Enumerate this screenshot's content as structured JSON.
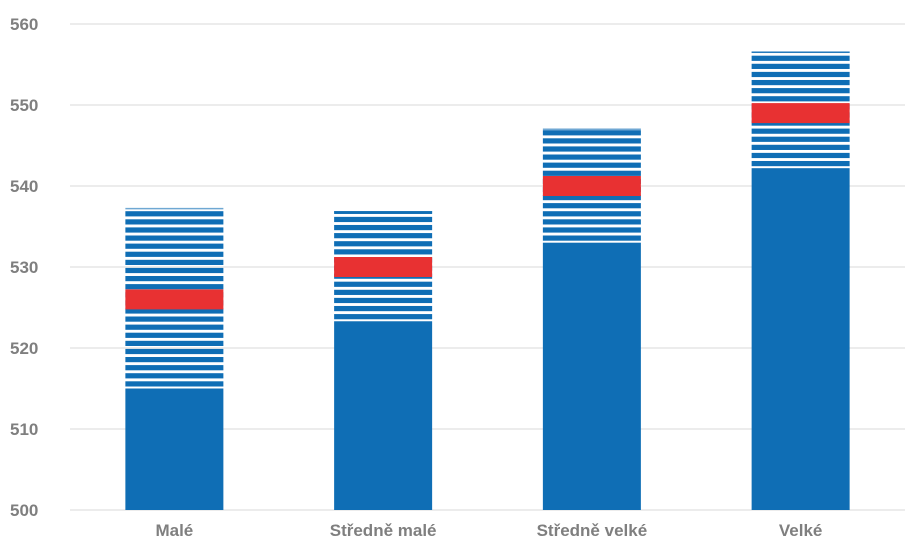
{
  "chart_data": {
    "type": "bar",
    "categories": [
      "Malé",
      "Středně malé",
      "Středně velké",
      "Velké"
    ],
    "series": [
      {
        "values": [
          515,
          523.3,
          533,
          542.2
        ]
      },
      {
        "values": [
          537.3,
          536.9,
          547.1,
          556.6
        ]
      },
      {
        "values": [
          526,
          530,
          540,
          549
        ]
      }
    ],
    "ylim": [
      500,
      560
    ],
    "yticks": [
      500,
      510,
      520,
      530,
      540,
      550,
      560
    ],
    "grid": true,
    "colors": {
      "solid": "#0f6eb5",
      "stripe": "#0f6eb5",
      "marker": "#e83132",
      "grid": "#d9d9d9",
      "text": "#7f7f7f"
    }
  }
}
